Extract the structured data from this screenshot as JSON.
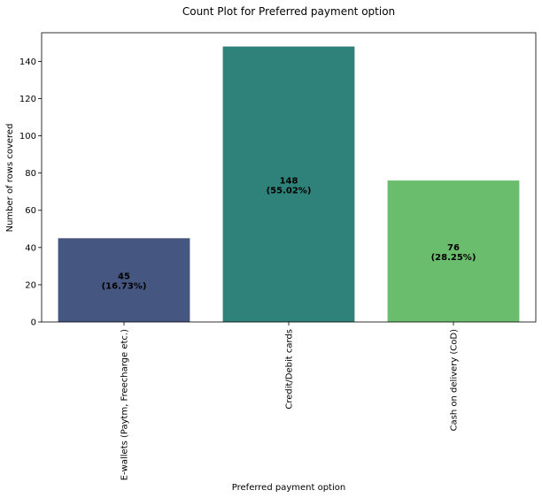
{
  "chart_data": {
    "type": "bar",
    "title": "Count Plot for Preferred payment option",
    "xlabel": "Preferred payment option",
    "ylabel": "Number of rows covered",
    "categories": [
      "E-wallets (Paytm, Freecharge etc.)",
      "Credit/Debit cards",
      "Cash on delivery (CoD)"
    ],
    "values": [
      45,
      148,
      76
    ],
    "bar_labels": [
      [
        "45",
        "(16.73%)"
      ],
      [
        "148",
        "(55.02%)"
      ],
      [
        "76",
        "(28.25%)"
      ]
    ],
    "colors": [
      "#455681",
      "#2e8279",
      "#6abd6d"
    ],
    "ylim": [
      0,
      155.4
    ],
    "yticks": [
      0,
      20,
      40,
      60,
      80,
      100,
      120,
      140
    ],
    "grid": false,
    "legend": "none"
  }
}
